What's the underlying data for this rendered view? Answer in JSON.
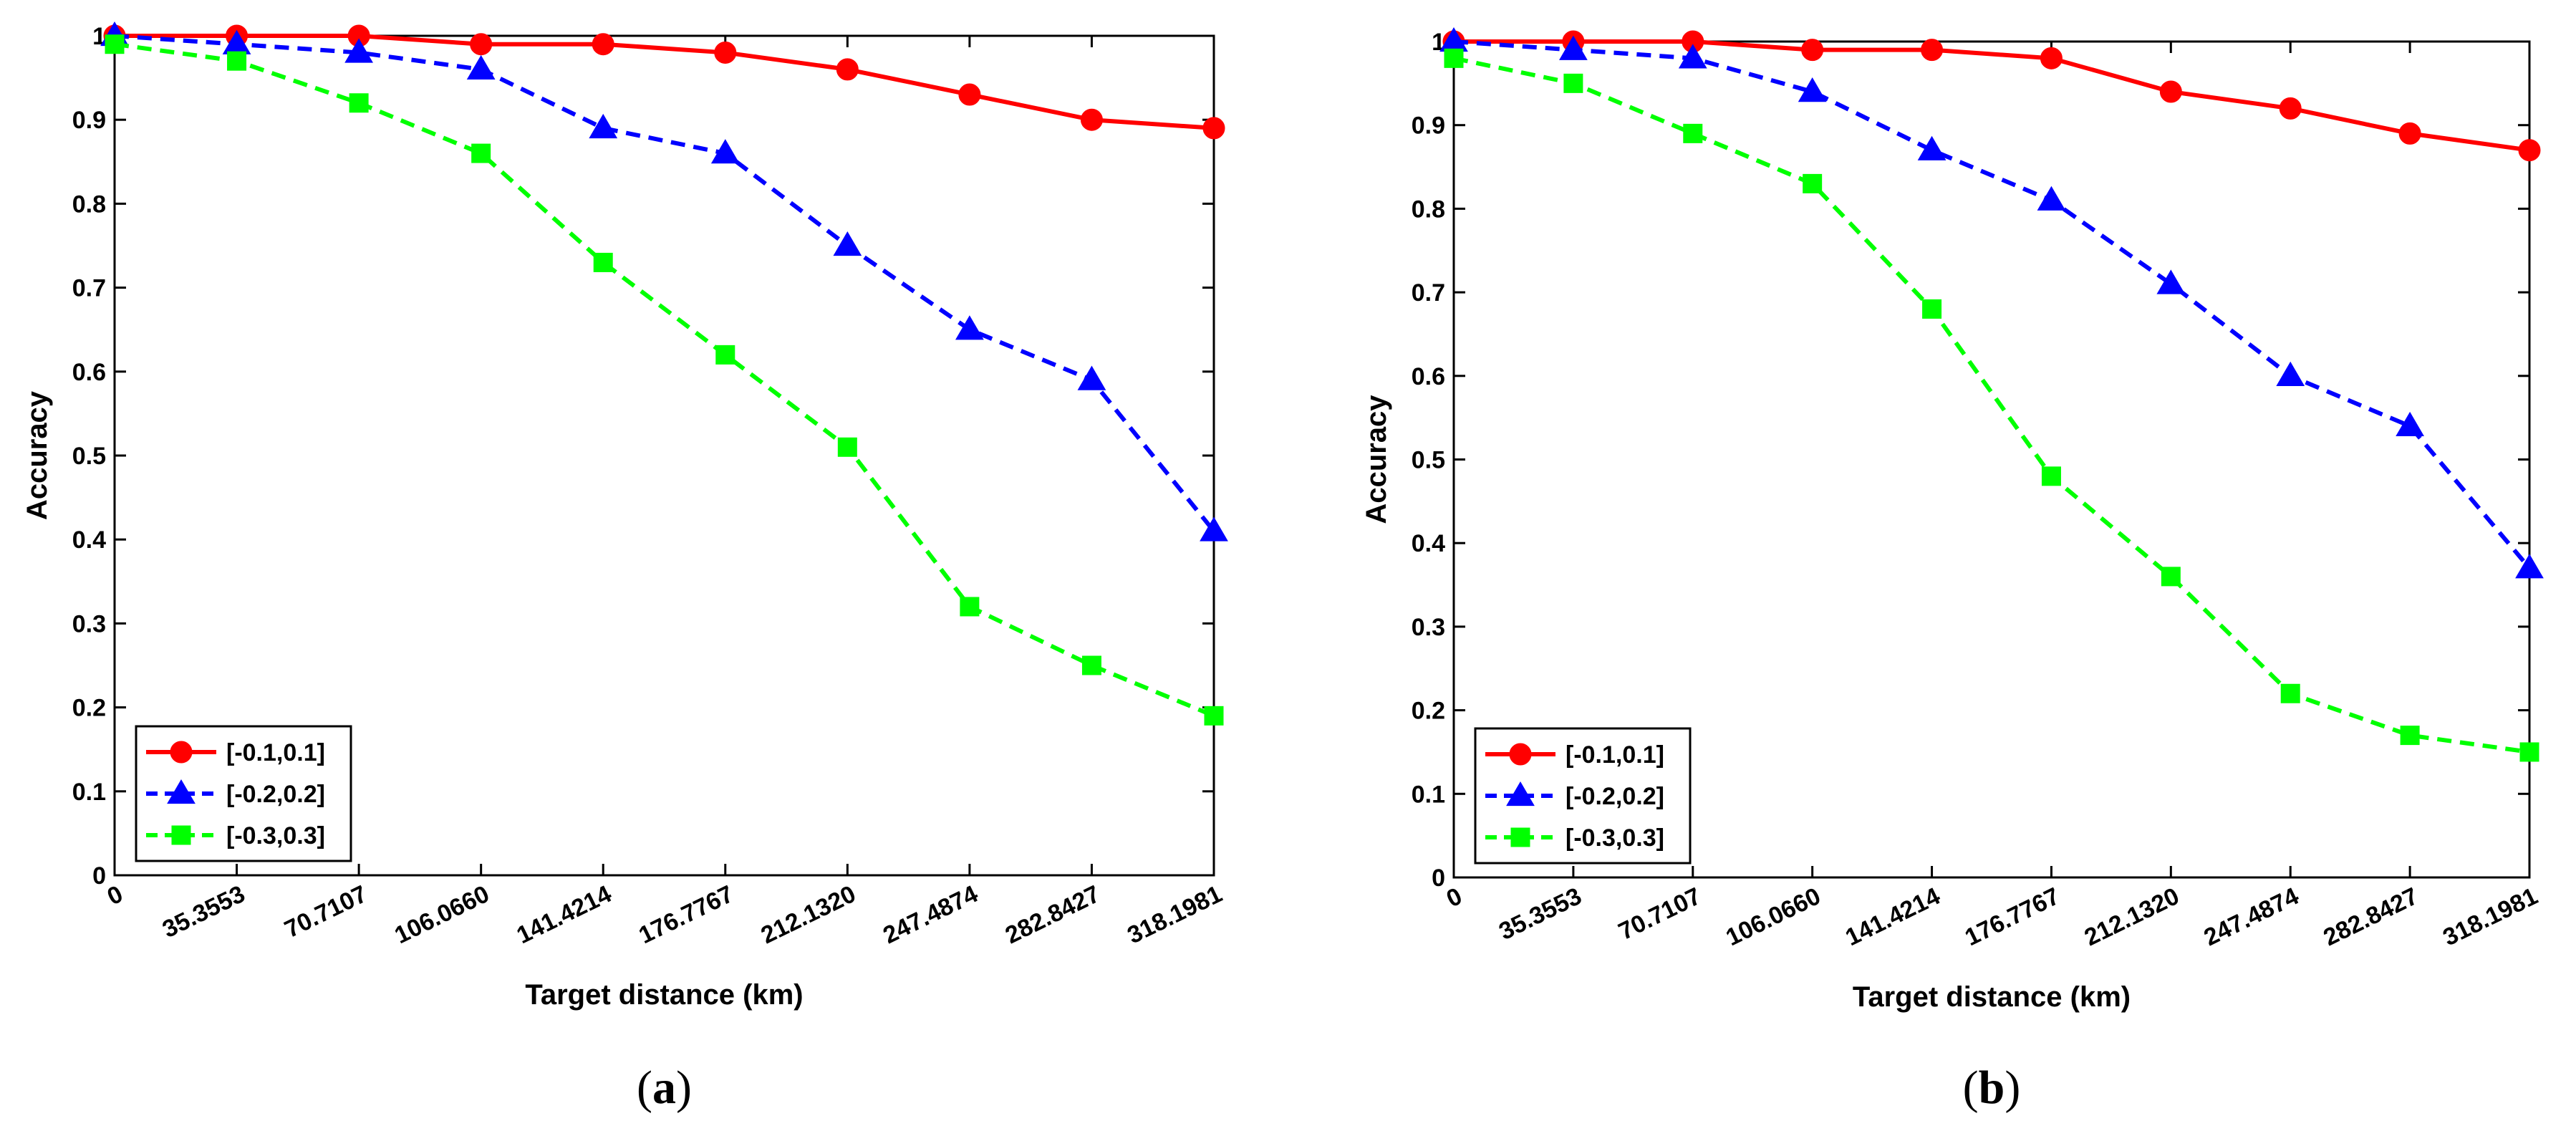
{
  "chart_data": [
    {
      "type": "line",
      "panel_label": "a",
      "xlabel": "Target distance (km)",
      "ylabel": "Accuracy",
      "categories": [
        "0",
        "35.3553",
        "70.7107",
        "106.0660",
        "141.4214",
        "176.7767",
        "212.1320",
        "247.4874",
        "282.8427",
        "318.1981"
      ],
      "ylim": [
        0,
        1
      ],
      "yticks": [
        "0",
        "0.1",
        "0.2",
        "0.3",
        "0.4",
        "0.5",
        "0.6",
        "0.7",
        "0.8",
        "0.9",
        "1"
      ],
      "legend_position": "bottom-left",
      "grid": false,
      "series": [
        {
          "name": "[-0.1,0.1]",
          "color": "#ff0000",
          "marker": "circle",
          "dash": "solid",
          "values": [
            1.0,
            1.0,
            1.0,
            0.99,
            0.99,
            0.98,
            0.96,
            0.93,
            0.9,
            0.89
          ]
        },
        {
          "name": "[-0.2,0.2]",
          "color": "#0000ff",
          "marker": "triangle",
          "dash": "dashed",
          "values": [
            1.0,
            0.99,
            0.98,
            0.96,
            0.89,
            0.86,
            0.75,
            0.65,
            0.59,
            0.41
          ]
        },
        {
          "name": "[-0.3,0.3]",
          "color": "#00ff00",
          "marker": "square",
          "dash": "dashed",
          "values": [
            0.99,
            0.97,
            0.92,
            0.86,
            0.73,
            0.62,
            0.51,
            0.32,
            0.25,
            0.19
          ]
        }
      ]
    },
    {
      "type": "line",
      "panel_label": "b",
      "xlabel": "Target distance (km)",
      "ylabel": "Accuracy",
      "categories": [
        "0",
        "35.3553",
        "70.7107",
        "106.0660",
        "141.4214",
        "176.7767",
        "212.1320",
        "247.4874",
        "282.8427",
        "318.1981"
      ],
      "ylim": [
        0,
        1
      ],
      "yticks": [
        "0",
        "0.1",
        "0.2",
        "0.3",
        "0.4",
        "0.5",
        "0.6",
        "0.7",
        "0.8",
        "0.9",
        "1"
      ],
      "legend_position": "bottom-left",
      "grid": false,
      "series": [
        {
          "name": "[-0.1,0.1]",
          "color": "#ff0000",
          "marker": "circle",
          "dash": "solid",
          "values": [
            1.0,
            1.0,
            1.0,
            0.99,
            0.99,
            0.98,
            0.94,
            0.92,
            0.89,
            0.87
          ]
        },
        {
          "name": "[-0.2,0.2]",
          "color": "#0000ff",
          "marker": "triangle",
          "dash": "dashed",
          "values": [
            1.0,
            0.99,
            0.98,
            0.94,
            0.87,
            0.81,
            0.71,
            0.6,
            0.54,
            0.37
          ]
        },
        {
          "name": "[-0.3,0.3]",
          "color": "#00ff00",
          "marker": "square",
          "dash": "dashed",
          "values": [
            0.98,
            0.95,
            0.89,
            0.83,
            0.68,
            0.48,
            0.36,
            0.22,
            0.17,
            0.15
          ]
        }
      ]
    }
  ]
}
